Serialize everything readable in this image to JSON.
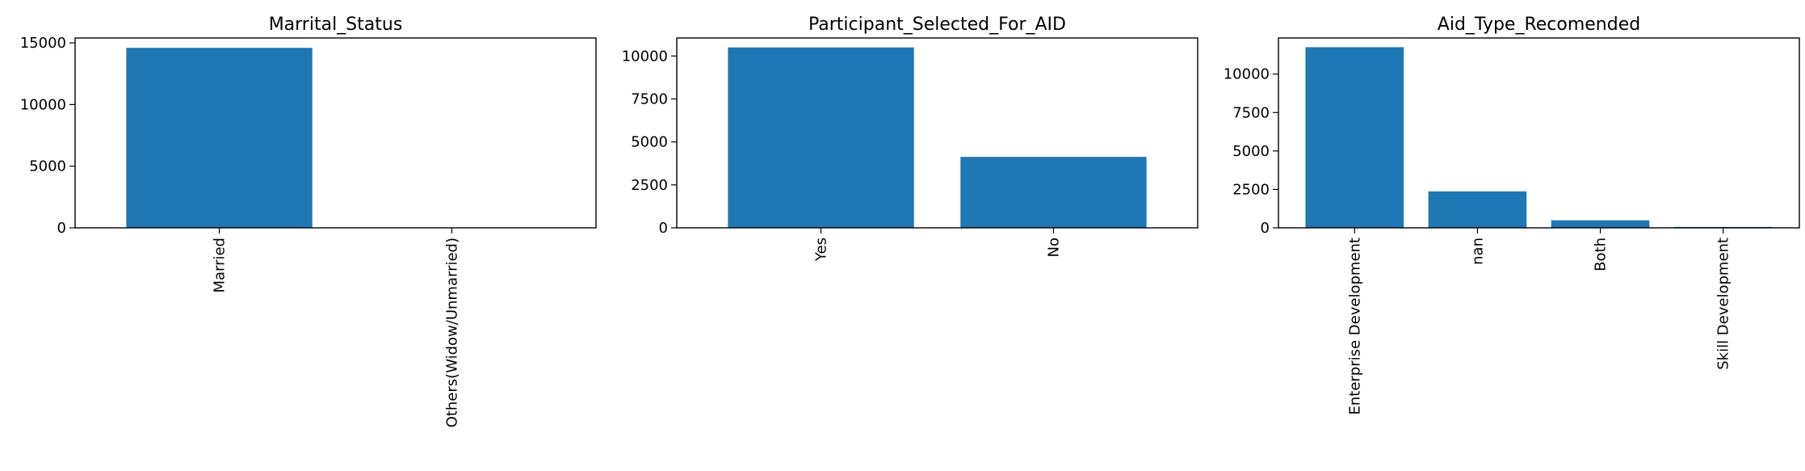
{
  "chart_data": [
    {
      "type": "bar",
      "title": "Marrital_Status",
      "categories": [
        "Married",
        "Others(Widow/Unmarried)"
      ],
      "values": [
        14600,
        20
      ],
      "ylim": [
        0,
        15400
      ],
      "yticks": [
        0,
        5000,
        10000,
        15000
      ],
      "bar_color": "#1f77b4",
      "grid": false
    },
    {
      "type": "bar",
      "title": "Participant_Selected_For_AID",
      "categories": [
        "Yes",
        "No"
      ],
      "values": [
        10500,
        4130
      ],
      "ylim": [
        0,
        11050
      ],
      "yticks": [
        0,
        2500,
        5000,
        7500,
        10000
      ],
      "bar_color": "#1f77b4",
      "grid": false
    },
    {
      "type": "bar",
      "title": "Aid_Type_Recomended",
      "categories": [
        "Enterprise Development",
        "nan",
        "Both",
        "Skill Development"
      ],
      "values": [
        11750,
        2370,
        490,
        60
      ],
      "ylim": [
        0,
        12350
      ],
      "yticks": [
        0,
        2500,
        5000,
        7500,
        10000
      ],
      "bar_color": "#1f77b4",
      "grid": false
    }
  ]
}
